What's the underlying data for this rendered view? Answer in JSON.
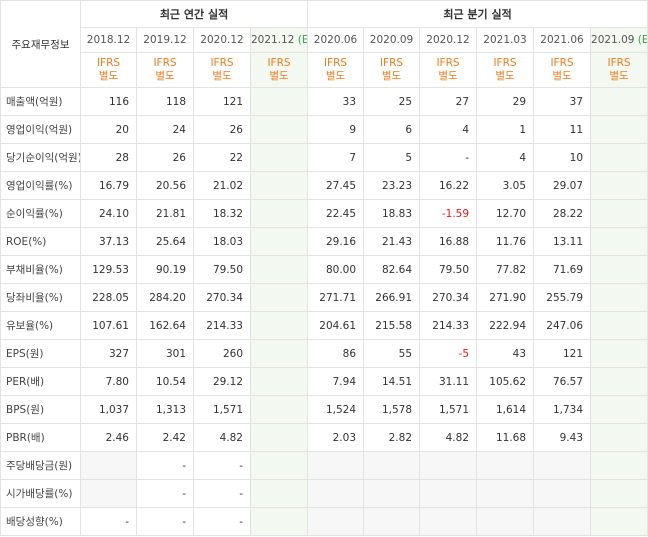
{
  "header": {
    "row_label": "주요재무정보",
    "annual_title": "최근 연간 실적",
    "quarter_title": "최근 분기 실적",
    "annual_dates": [
      "2018.12",
      "2019.12",
      "2020.12",
      "2021.12"
    ],
    "annual_estimate_mark": "(E)",
    "quarter_dates": [
      "2020.06",
      "2020.09",
      "2020.12",
      "2021.03",
      "2021.06",
      "2021.09"
    ],
    "quarter_estimate_mark": "(E)",
    "ifrs_line1": "IFRS",
    "ifrs_line2": "별도"
  },
  "rows": [
    {
      "label": "매출액(억원)",
      "annual": [
        "116",
        "118",
        "121",
        ""
      ],
      "quarter": [
        "33",
        "25",
        "27",
        "29",
        "37",
        ""
      ]
    },
    {
      "label": "영업이익(억원)",
      "annual": [
        "20",
        "24",
        "26",
        ""
      ],
      "quarter": [
        "9",
        "6",
        "4",
        "1",
        "11",
        ""
      ]
    },
    {
      "label": "당기순이익(억원)",
      "annual": [
        "28",
        "26",
        "22",
        ""
      ],
      "quarter": [
        "7",
        "5",
        "-",
        "4",
        "10",
        ""
      ]
    },
    {
      "label": "영업이익률(%)",
      "annual": [
        "16.79",
        "20.56",
        "21.02",
        ""
      ],
      "quarter": [
        "27.45",
        "23.23",
        "16.22",
        "3.05",
        "29.07",
        ""
      ]
    },
    {
      "label": "순이익률(%)",
      "annual": [
        "24.10",
        "21.81",
        "18.32",
        ""
      ],
      "quarter": [
        "22.45",
        "18.83",
        "-1.59",
        "12.70",
        "28.22",
        ""
      ]
    },
    {
      "label": "ROE(%)",
      "annual": [
        "37.13",
        "25.64",
        "18.03",
        ""
      ],
      "quarter": [
        "29.16",
        "21.43",
        "16.88",
        "11.76",
        "13.11",
        ""
      ]
    },
    {
      "label": "부채비율(%)",
      "annual": [
        "129.53",
        "90.19",
        "79.50",
        ""
      ],
      "quarter": [
        "80.00",
        "82.64",
        "79.50",
        "77.82",
        "71.69",
        ""
      ]
    },
    {
      "label": "당좌비율(%)",
      "annual": [
        "228.05",
        "284.20",
        "270.34",
        ""
      ],
      "quarter": [
        "271.71",
        "266.91",
        "270.34",
        "271.90",
        "255.79",
        ""
      ]
    },
    {
      "label": "유보율(%)",
      "annual": [
        "107.61",
        "162.64",
        "214.33",
        ""
      ],
      "quarter": [
        "204.61",
        "215.58",
        "214.33",
        "222.94",
        "247.06",
        ""
      ]
    },
    {
      "label": "EPS(원)",
      "annual": [
        "327",
        "301",
        "260",
        ""
      ],
      "quarter": [
        "86",
        "55",
        "-5",
        "43",
        "121",
        ""
      ]
    },
    {
      "label": "PER(배)",
      "annual": [
        "7.80",
        "10.54",
        "29.12",
        ""
      ],
      "quarter": [
        "7.94",
        "14.51",
        "31.11",
        "105.62",
        "76.57",
        ""
      ]
    },
    {
      "label": "BPS(원)",
      "annual": [
        "1,037",
        "1,313",
        "1,571",
        ""
      ],
      "quarter": [
        "1,524",
        "1,578",
        "1,571",
        "1,614",
        "1,734",
        ""
      ]
    },
    {
      "label": "PBR(배)",
      "annual": [
        "2.46",
        "2.42",
        "4.82",
        ""
      ],
      "quarter": [
        "2.03",
        "2.82",
        "4.82",
        "11.68",
        "9.43",
        ""
      ]
    },
    {
      "label": "주당배당금(원)",
      "annual": [
        "",
        "-",
        "-",
        ""
      ],
      "quarter": [
        "",
        "",
        "",
        "",
        "",
        ""
      ]
    },
    {
      "label": "시가배당률(%)",
      "annual": [
        "",
        "-",
        "-",
        ""
      ],
      "quarter": [
        "",
        "",
        "",
        "",
        "",
        ""
      ]
    },
    {
      "label": "배당성향(%)",
      "annual": [
        "-",
        "-",
        "-",
        ""
      ],
      "quarter": [
        "",
        "",
        "",
        "",
        "",
        ""
      ]
    }
  ],
  "colors": {
    "ifrs": "#f07b1e",
    "negative": "#e51a1a",
    "estimate_bg": "#f3f9f1",
    "estimate_mark": "#3aa44b"
  }
}
